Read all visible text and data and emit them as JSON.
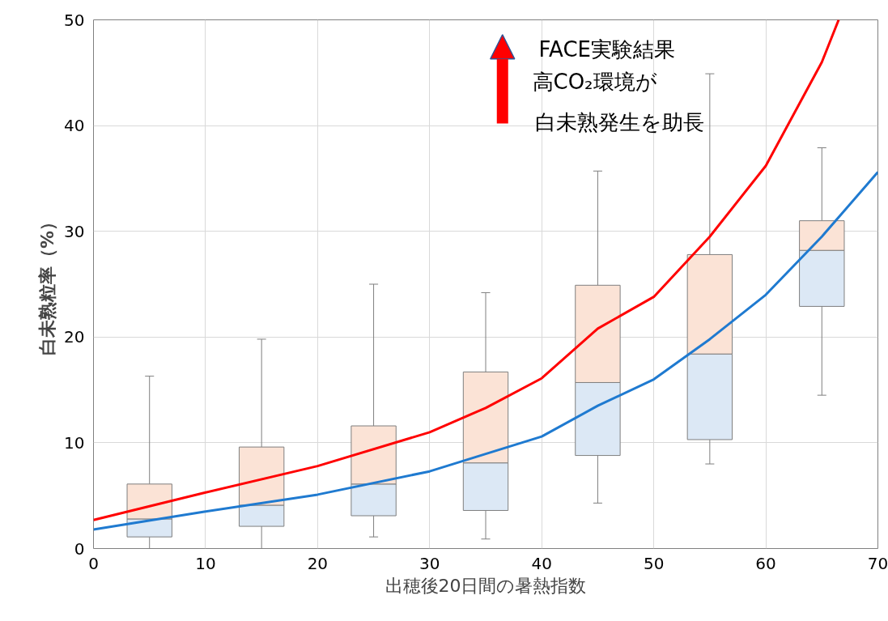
{
  "chart_data": {
    "type": "box",
    "xlabel": "出穂後20日間の暑熱指数",
    "ylabel": "白未熟粒率（%）",
    "annotations": [
      "FACE実験結果",
      "高CO₂環境が",
      "白未熟発生を助長"
    ],
    "xlim": [
      0,
      70
    ],
    "xticks": [
      0,
      10,
      20,
      30,
      40,
      50,
      60,
      70
    ],
    "ylim": [
      0,
      50
    ],
    "yticks": [
      0,
      10,
      20,
      30,
      40,
      50
    ],
    "grid": true,
    "series": [
      {
        "x": [
          5,
          15,
          25,
          35,
          45,
          55,
          65
        ],
        "colors": [
          [
            "#dce8f5",
            "#fbe3d6"
          ],
          [
            "#dce8f5",
            "#fbe3d6"
          ],
          [
            "#dce8f5",
            "#fbe3d6"
          ],
          [
            "#dce8f5",
            "#fbe3d6"
          ],
          [
            "#dce8f5",
            "#fbe3d6"
          ],
          [
            "#dce8f5",
            "#fbe3d6"
          ],
          [
            "#dce8f5",
            "#fbe3d6"
          ]
        ],
        "boxes": [
          {
            "low": 0,
            "q1": 1.1,
            "median": 2.8,
            "q3": 6.1,
            "high": 16.3
          },
          {
            "low": 0,
            "q1": 2.1,
            "median": 4.1,
            "q3": 9.6,
            "high": 19.8
          },
          {
            "low": 1.1,
            "q1": 3.1,
            "median": 6.1,
            "q3": 11.6,
            "high": 25.0
          },
          {
            "low": 0.9,
            "q1": 3.6,
            "median": 8.1,
            "q3": 16.7,
            "high": 24.2
          },
          {
            "low": 4.3,
            "q1": 8.8,
            "median": 15.7,
            "q3": 24.9,
            "high": 35.7
          },
          {
            "low": 8.0,
            "q1": 10.3,
            "median": 18.4,
            "q3": 27.8,
            "high": 44.9
          },
          {
            "low": 14.5,
            "q1": 22.9,
            "median": 28.2,
            "q3": 31.0,
            "high": 37.9
          }
        ]
      },
      {
        "type": "line",
        "color": "#ff0000",
        "x": [
          0,
          10,
          20,
          30,
          35,
          40,
          45,
          50,
          55,
          60,
          65,
          66.5
        ],
        "values": [
          2.7,
          5.3,
          7.8,
          11,
          13.3,
          16.1,
          20.8,
          23.8,
          29.5,
          36.2,
          46,
          50
        ]
      },
      {
        "type": "line",
        "color": "#1f7ad0",
        "x": [
          0,
          10,
          20,
          30,
          40,
          45,
          50,
          55,
          60,
          65,
          70
        ],
        "values": [
          1.8,
          3.5,
          5.1,
          7.3,
          10.6,
          13.5,
          16.0,
          19.8,
          24,
          29.5,
          35.6
        ]
      }
    ]
  }
}
